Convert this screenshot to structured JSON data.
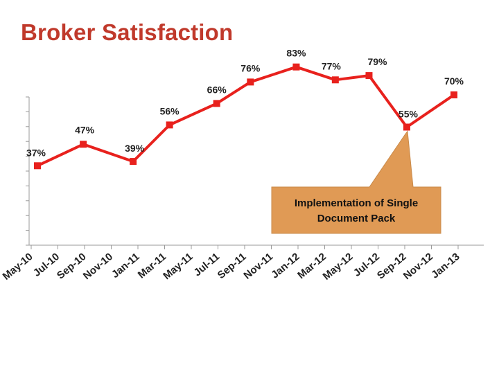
{
  "title": "Broker Satisfaction",
  "colors": {
    "title": "#c0392b",
    "series": "#e8211d",
    "callout": "#e09a55",
    "axis": "#999999"
  },
  "chart_data": {
    "type": "line",
    "x": [
      "May-10",
      "Jul-10",
      "Sep-10",
      "Nov-10",
      "Jan-11",
      "Mar-11",
      "May-11",
      "Jul-11",
      "Sep-11",
      "Nov-11",
      "Jan-12",
      "Mar-12",
      "May-12",
      "Jul-12",
      "Sep-12",
      "Nov-12",
      "Jan-13"
    ],
    "points": [
      {
        "x": "May-10",
        "value": 37,
        "label": "37%"
      },
      {
        "x": "Jul-10",
        "value": 47,
        "label": "47%"
      },
      {
        "x": "Sep-10",
        "value": 39,
        "label": "39%"
      },
      {
        "x": "Nov-10",
        "value": 56,
        "label": "56%"
      },
      {
        "x": "Jan-11",
        "value": 66,
        "label": "66%"
      },
      {
        "x": "Mar-11",
        "value": 76,
        "label": "76%"
      },
      {
        "x": "May-11",
        "value": 83,
        "label": "83%"
      },
      {
        "x": "Jul-11",
        "value": 77,
        "label": "77%"
      },
      {
        "x": "Sep-11",
        "value": 79,
        "label": "79%"
      },
      {
        "x": "Nov-11",
        "value": 55,
        "label": "55%"
      },
      {
        "x": "Jan-12",
        "value": 70,
        "label": "70%"
      }
    ],
    "point_x_index": [
      0,
      1.7,
      3.55,
      4.9,
      6.65,
      7.9,
      9.6,
      11.05,
      12.3,
      13.7,
      15.45
    ],
    "ylim": [
      0,
      100
    ],
    "xlabel": "",
    "ylabel": "",
    "grid": false,
    "annotation": {
      "lines": [
        "Implementation of Single",
        "Document Pack"
      ],
      "points_to": "Nov-11"
    }
  }
}
